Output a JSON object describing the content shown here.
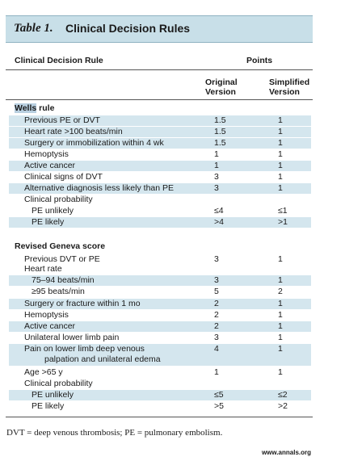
{
  "title": {
    "label": "Table 1.",
    "text": "Clinical Decision Rules"
  },
  "header": {
    "col_rule": "Clinical Decision Rule",
    "col_points": "Points",
    "col_original_1": "Original",
    "col_original_2": "Version",
    "col_simplified_1": "Simplified",
    "col_simplified_2": "Version"
  },
  "wells": {
    "title_hl": "Wells",
    "title_rest": " rule",
    "rows": [
      {
        "label": "Previous PE or DVT",
        "original": "1.5",
        "simplified": "1"
      },
      {
        "label": "Heart rate >100 beats/min",
        "original": "1.5",
        "simplified": "1"
      },
      {
        "label": "Surgery or immobilization within 4 wk",
        "original": "1.5",
        "simplified": "1"
      },
      {
        "label": "Hemoptysis",
        "original": "1",
        "simplified": "1"
      },
      {
        "label": "Active cancer",
        "original": "1",
        "simplified": "1"
      },
      {
        "label": "Clinical signs of DVT",
        "original": "3",
        "simplified": "1"
      },
      {
        "label": "Alternative diagnosis less likely than PE",
        "original": "3",
        "simplified": "1"
      },
      {
        "label": "Clinical probability",
        "original": "",
        "simplified": ""
      },
      {
        "label": "PE unlikely",
        "original": "≤4",
        "simplified": "≤1"
      },
      {
        "label": "PE likely",
        "original": ">4",
        "simplified": ">1"
      }
    ]
  },
  "geneva": {
    "title": "Revised Geneva score",
    "rows": [
      {
        "label": "Previous DVT or PE",
        "original": "3",
        "simplified": "1"
      },
      {
        "label": "Heart rate",
        "original": "",
        "simplified": ""
      },
      {
        "label": "75–94 beats/min",
        "original": "3",
        "simplified": "1"
      },
      {
        "label": "≥95 beats/min",
        "original": "5",
        "simplified": "2"
      },
      {
        "label": "Surgery or fracture within 1 mo",
        "original": "2",
        "simplified": "1"
      },
      {
        "label": "Hemoptysis",
        "original": "2",
        "simplified": "1"
      },
      {
        "label": "Active cancer",
        "original": "2",
        "simplified": "1"
      },
      {
        "label": "Unilateral lower limb pain",
        "original": "3",
        "simplified": "1"
      },
      {
        "label": "Pain on lower limb deep venous",
        "label2": "palpation and unilateral edema",
        "original": "4",
        "simplified": "1"
      },
      {
        "label": "Age >65 y",
        "original": "1",
        "simplified": "1"
      },
      {
        "label": "Clinical probability",
        "original": "",
        "simplified": ""
      },
      {
        "label": "PE unlikely",
        "original": "≤5",
        "simplified": "≤2"
      },
      {
        "label": "PE likely",
        "original": ">5",
        "simplified": ">2"
      }
    ]
  },
  "footnote": "DVT = deep venous thrombosis; PE = pulmonary embolism.",
  "website": "www.annals.org"
}
